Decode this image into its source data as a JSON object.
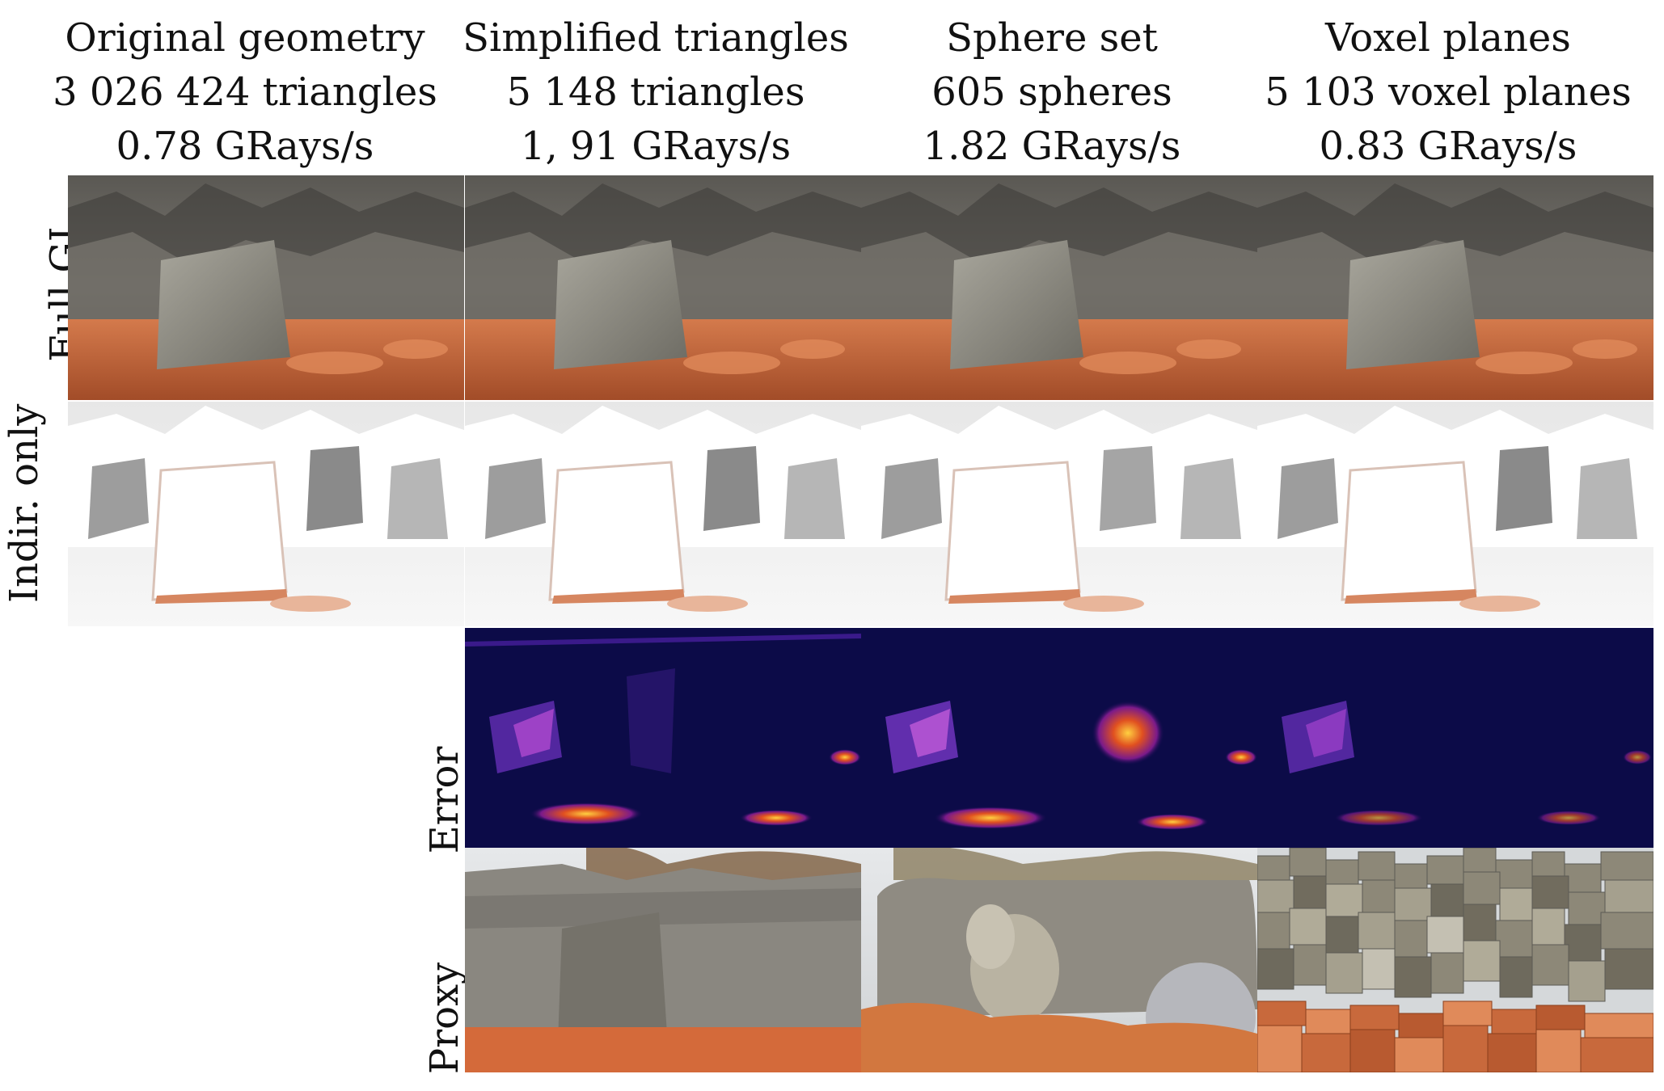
{
  "columns": [
    {
      "title": "Original geometry",
      "count": "3 026 424 triangles",
      "rate": "0.78 GRays/s"
    },
    {
      "title": "Simplified triangles",
      "count": "5 148 triangles",
      "rate": "1, 91 GRays/s"
    },
    {
      "title": "Sphere set",
      "count": "605 spheres",
      "rate": "1.82 GRays/s"
    },
    {
      "title": "Voxel planes",
      "count": "5 103 voxel planes",
      "rate": "0.83 GRays/s"
    }
  ],
  "row_labels": {
    "full_gi": "Full GI",
    "indirect_only": "Indir. only",
    "error": "Error",
    "proxy": "Proxy"
  },
  "colors": {
    "rock": "#6e6a64",
    "sand": "#c8643a",
    "snow": "#f2f2f2",
    "error_bg": "#0a0a4a",
    "error_hot": "#f4a020",
    "sky": "#dfe2e6"
  }
}
